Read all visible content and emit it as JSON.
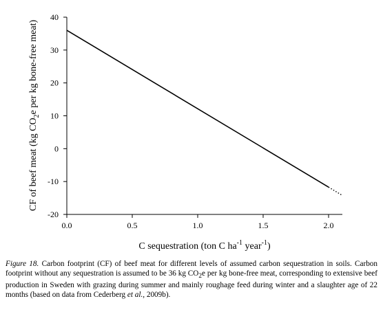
{
  "chart_data": {
    "type": "line",
    "xlabel_parts": [
      "C sequestration (ton C ha",
      "-1",
      " year",
      "-1",
      ")"
    ],
    "ylabel_parts": [
      "CF of beef meat (kg CO",
      "2",
      "e per kg bone-free meat)"
    ],
    "xlim": [
      0.0,
      2.1
    ],
    "ylim": [
      -20,
      40
    ],
    "x_ticks": [
      "0.0",
      "0.5",
      "1.0",
      "1.5",
      "2.0"
    ],
    "x_tick_values": [
      0.0,
      0.5,
      1.0,
      1.5,
      2.0
    ],
    "y_ticks": [
      "40",
      "30",
      "20",
      "10",
      "0",
      "-10",
      "-20"
    ],
    "y_tick_values": [
      40,
      30,
      20,
      10,
      0,
      -10,
      -20
    ],
    "series": [
      {
        "x": [
          0.0,
          2.0
        ],
        "y": [
          36,
          -11.7
        ],
        "style": "solid",
        "color": "#000000"
      },
      {
        "x": [
          2.0,
          2.1
        ],
        "y": [
          -11.7,
          -14.1
        ],
        "style": "dotted",
        "color": "#000000"
      }
    ],
    "grid": false,
    "legend": "none"
  },
  "caption": {
    "figure_label": "Figure 18.",
    "text_before_co2": " Carbon footprint (CF) of beef meat for different levels of assumed carbon sequestration in soils. Carbon footprint without any sequestration is assumed to be 36 kg CO",
    "co2_sub": "2",
    "text_after_co2": "e per kg bone-free meat, corresponding to extensive beef production in Sweden with grazing during summer and mainly roughage feed during winter and a slaughter age of 22 months (based on data from Cederberg ",
    "etal": "et al.",
    "text_end": ", 2009b)."
  }
}
